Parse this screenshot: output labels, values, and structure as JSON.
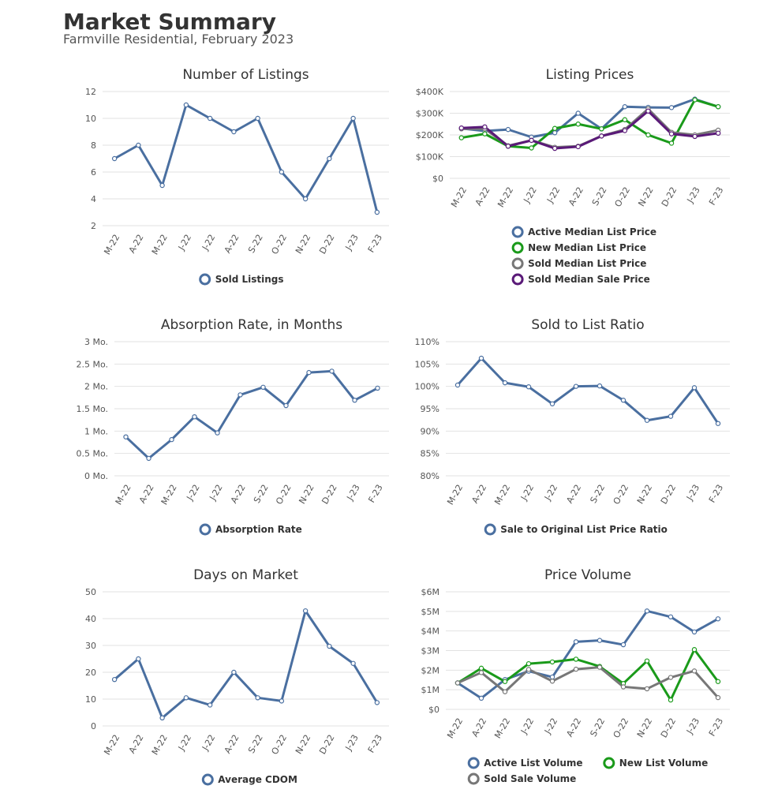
{
  "header": {
    "title": "Market Summary",
    "subtitle": "Farmville Residential, February 2023"
  },
  "chart_data": [
    {
      "type": "line",
      "title": "Number of Listings",
      "categories": [
        "M-22",
        "A-22",
        "M-22",
        "J-22",
        "J-22",
        "A-22",
        "S-22",
        "O-22",
        "N-22",
        "D-22",
        "J-23",
        "F-23"
      ],
      "ylim": [
        2,
        12
      ],
      "yticks": [
        2,
        4,
        6,
        8,
        10,
        12
      ],
      "ytick_labels": [
        "2",
        "4",
        "6",
        "8",
        "10",
        "12"
      ],
      "grid": true,
      "legend_position": "bottom",
      "series": [
        {
          "name": "Sold Listings",
          "color": "#4a6fa0",
          "values": [
            7,
            8,
            5,
            11,
            10,
            9,
            10,
            6,
            4,
            7,
            10,
            3
          ]
        }
      ]
    },
    {
      "type": "line",
      "title": "Listing Prices",
      "categories": [
        "M-22",
        "A-22",
        "M-22",
        "J-22",
        "J-22",
        "A-22",
        "S-22",
        "O-22",
        "N-22",
        "D-22",
        "J-23",
        "F-23"
      ],
      "ylim": [
        0,
        400000
      ],
      "yticks": [
        0,
        100000,
        200000,
        300000,
        400000
      ],
      "ytick_labels": [
        "$0",
        "$100K",
        "$200K",
        "$300K",
        "$400K"
      ],
      "grid": true,
      "legend_position": "bottom",
      "series": [
        {
          "name": "Active Median List Price",
          "color": "#4a6fa0",
          "values": [
            230000,
            218000,
            225000,
            190000,
            210000,
            300000,
            228000,
            330000,
            327000,
            326000,
            365000,
            330000
          ]
        },
        {
          "name": "New Median List Price",
          "color": "#1a9a1a",
          "values": [
            187000,
            205000,
            148000,
            140000,
            230000,
            250000,
            228000,
            270000,
            200000,
            162000,
            362000,
            330000
          ]
        },
        {
          "name": "Sold Median List Price",
          "color": "#777777",
          "values": [
            228000,
            228000,
            150000,
            175000,
            143000,
            148000,
            195000,
            225000,
            320000,
            212000,
            200000,
            222000
          ]
        },
        {
          "name": "Sold Median Sale Price",
          "color": "#5a1a78",
          "values": [
            232000,
            237000,
            148000,
            175000,
            138000,
            146000,
            195000,
            220000,
            310000,
            205000,
            193000,
            208000
          ]
        }
      ]
    },
    {
      "type": "line",
      "title": "Absorption Rate, in Months",
      "categories": [
        "M-22",
        "A-22",
        "M-22",
        "J-22",
        "J-22",
        "A-22",
        "S-22",
        "O-22",
        "N-22",
        "D-22",
        "J-23",
        "F-23"
      ],
      "ylim": [
        0,
        3
      ],
      "yticks": [
        0,
        0.5,
        1,
        1.5,
        2,
        2.5,
        3
      ],
      "ytick_labels": [
        "0 Mo.",
        "0.5 Mo.",
        "1 Mo.",
        "1.5 Mo.",
        "2 Mo.",
        "2.5 Mo.",
        "3 Mo."
      ],
      "grid": true,
      "legend_position": "bottom",
      "series": [
        {
          "name": "Absorption Rate",
          "color": "#4a6fa0",
          "values": [
            0.87,
            0.39,
            0.81,
            1.32,
            0.96,
            1.81,
            1.98,
            1.57,
            2.31,
            2.34,
            1.69,
            1.96
          ]
        }
      ]
    },
    {
      "type": "line",
      "title": "Sold to List Ratio",
      "categories": [
        "M-22",
        "A-22",
        "M-22",
        "J-22",
        "J-22",
        "A-22",
        "S-22",
        "O-22",
        "N-22",
        "D-22",
        "J-23",
        "F-23"
      ],
      "ylim": [
        80,
        110
      ],
      "yticks": [
        80,
        85,
        90,
        95,
        100,
        105,
        110
      ],
      "ytick_labels": [
        "80%",
        "85%",
        "90%",
        "95%",
        "100%",
        "105%",
        "110%"
      ],
      "grid": true,
      "legend_position": "bottom",
      "series": [
        {
          "name": "Sale to Original List Price Ratio",
          "color": "#4a6fa0",
          "values": [
            100.3,
            106.3,
            100.8,
            99.9,
            96.1,
            100.0,
            100.1,
            96.9,
            92.4,
            93.3,
            99.7,
            91.7
          ]
        }
      ]
    },
    {
      "type": "line",
      "title": "Days on Market",
      "categories": [
        "M-22",
        "A-22",
        "M-22",
        "J-22",
        "J-22",
        "A-22",
        "S-22",
        "O-22",
        "N-22",
        "D-22",
        "J-23",
        "F-23"
      ],
      "ylim": [
        0,
        50
      ],
      "yticks": [
        0,
        10,
        20,
        30,
        40,
        50
      ],
      "ytick_labels": [
        "0",
        "10",
        "20",
        "30",
        "40",
        "50"
      ],
      "grid": true,
      "legend_position": "bottom",
      "series": [
        {
          "name": "Average CDOM",
          "color": "#4a6fa0",
          "values": [
            17.3,
            25,
            3,
            10.5,
            7.8,
            20,
            10.5,
            9.3,
            42.9,
            29.7,
            23.3,
            8.7
          ]
        }
      ]
    },
    {
      "type": "line",
      "title": "Price Volume",
      "categories": [
        "M-22",
        "A-22",
        "M-22",
        "J-22",
        "J-22",
        "A-22",
        "S-22",
        "O-22",
        "N-22",
        "D-22",
        "J-23",
        "F-23"
      ],
      "ylim": [
        0,
        6000000
      ],
      "yticks": [
        0,
        1000000,
        2000000,
        3000000,
        4000000,
        5000000,
        6000000
      ],
      "ytick_labels": [
        "$0",
        "$1M",
        "$2M",
        "$3M",
        "$4M",
        "$5M",
        "$6M"
      ],
      "grid": true,
      "legend_position": "bottom",
      "series": [
        {
          "name": "Active List Volume",
          "color": "#4a6fa0",
          "values": [
            1350000,
            570000,
            1520000,
            1950000,
            1650000,
            3450000,
            3520000,
            3300000,
            5020000,
            4720000,
            3950000,
            4620000
          ]
        },
        {
          "name": "New List Volume",
          "color": "#1a9a1a",
          "values": [
            1350000,
            2100000,
            1420000,
            2330000,
            2420000,
            2560000,
            2190000,
            1320000,
            2470000,
            480000,
            3050000,
            1420000
          ]
        },
        {
          "name": "Sold Sale Volume",
          "color": "#777777",
          "values": [
            1350000,
            1880000,
            900000,
            2040000,
            1440000,
            2050000,
            2150000,
            1150000,
            1050000,
            1630000,
            1960000,
            600000
          ]
        }
      ]
    }
  ]
}
